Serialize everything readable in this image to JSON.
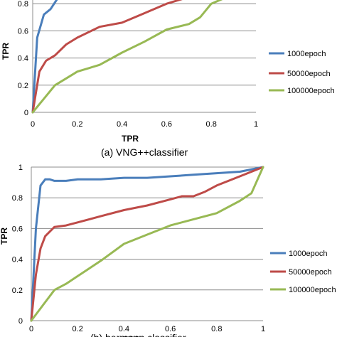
{
  "chart_data": [
    {
      "type": "line",
      "panel": "a",
      "caption": "(a) VNG++classifier",
      "xlabel": "TPR",
      "ylabel": "TPR",
      "xlim": [
        0,
        1
      ],
      "ylim": [
        0,
        1
      ],
      "xticks": [
        "0",
        "0.2",
        "0.4",
        "0.6",
        "0.8",
        "1"
      ],
      "yticks": [
        "0",
        "0.2",
        "0.4",
        "0.6",
        "0.8"
      ],
      "grid": "horizontal",
      "legend_position": "right",
      "series": [
        {
          "name": "1000epoch",
          "color": "#4a7ebb",
          "x": [
            0,
            0.02,
            0.05,
            0.08,
            0.12,
            0.15,
            0.2,
            0.25,
            0.3,
            0.35,
            0.4,
            0.5,
            0.6,
            0.7,
            0.8,
            0.9,
            1.0
          ],
          "y": [
            0,
            0.55,
            0.72,
            0.76,
            0.86,
            0.9,
            0.88,
            0.87,
            0.92,
            0.93,
            0.93,
            0.92,
            0.94,
            0.95,
            0.96,
            0.98,
            0.99
          ]
        },
        {
          "name": "50000epoch",
          "color": "#be4b48",
          "x": [
            0,
            0.03,
            0.06,
            0.1,
            0.15,
            0.2,
            0.3,
            0.4,
            0.5,
            0.6,
            0.7,
            0.8,
            0.9,
            1.0
          ],
          "y": [
            0,
            0.3,
            0.38,
            0.42,
            0.5,
            0.55,
            0.63,
            0.66,
            0.73,
            0.8,
            0.85,
            0.9,
            0.95,
            0.98
          ]
        },
        {
          "name": "100000epoch",
          "color": "#98b954",
          "x": [
            0,
            0.05,
            0.1,
            0.15,
            0.2,
            0.3,
            0.4,
            0.5,
            0.6,
            0.7,
            0.75,
            0.8,
            0.9,
            0.95,
            1.0
          ],
          "y": [
            0,
            0.1,
            0.2,
            0.25,
            0.3,
            0.35,
            0.44,
            0.52,
            0.61,
            0.65,
            0.7,
            0.8,
            0.87,
            0.92,
            0.99
          ]
        }
      ]
    },
    {
      "type": "line",
      "panel": "b",
      "caption": "(b) bermann classifier",
      "xlabel": "TPR",
      "ylabel": "TPR",
      "xlim": [
        0,
        1
      ],
      "ylim": [
        0,
        1
      ],
      "xticks": [
        "0",
        "0.2",
        "0.4",
        "0.6",
        "0.8",
        "1"
      ],
      "yticks": [
        "0",
        "0.2",
        "0.4",
        "0.6",
        "0.8",
        "1"
      ],
      "grid": "horizontal",
      "legend_position": "right",
      "series": [
        {
          "name": "1000epoch",
          "color": "#4a7ebb",
          "x": [
            0,
            0.02,
            0.04,
            0.06,
            0.08,
            0.1,
            0.15,
            0.2,
            0.3,
            0.4,
            0.5,
            0.6,
            0.7,
            0.8,
            0.9,
            1.0
          ],
          "y": [
            0,
            0.6,
            0.88,
            0.92,
            0.92,
            0.91,
            0.91,
            0.92,
            0.92,
            0.93,
            0.93,
            0.94,
            0.95,
            0.96,
            0.97,
            1.0
          ]
        },
        {
          "name": "50000epoch",
          "color": "#be4b48",
          "x": [
            0,
            0.02,
            0.04,
            0.06,
            0.08,
            0.1,
            0.15,
            0.2,
            0.3,
            0.4,
            0.5,
            0.6,
            0.65,
            0.7,
            0.75,
            0.8,
            0.9,
            0.95,
            1.0
          ],
          "y": [
            0,
            0.3,
            0.47,
            0.55,
            0.58,
            0.61,
            0.62,
            0.64,
            0.68,
            0.72,
            0.75,
            0.79,
            0.81,
            0.81,
            0.84,
            0.88,
            0.94,
            0.97,
            1.0
          ]
        },
        {
          "name": "100000epoch",
          "color": "#98b954",
          "x": [
            0,
            0.05,
            0.1,
            0.15,
            0.2,
            0.3,
            0.4,
            0.5,
            0.6,
            0.7,
            0.8,
            0.9,
            0.95,
            1.0
          ],
          "y": [
            0,
            0.1,
            0.2,
            0.24,
            0.29,
            0.39,
            0.5,
            0.56,
            0.62,
            0.66,
            0.7,
            0.78,
            0.83,
            1.0
          ]
        }
      ]
    }
  ]
}
